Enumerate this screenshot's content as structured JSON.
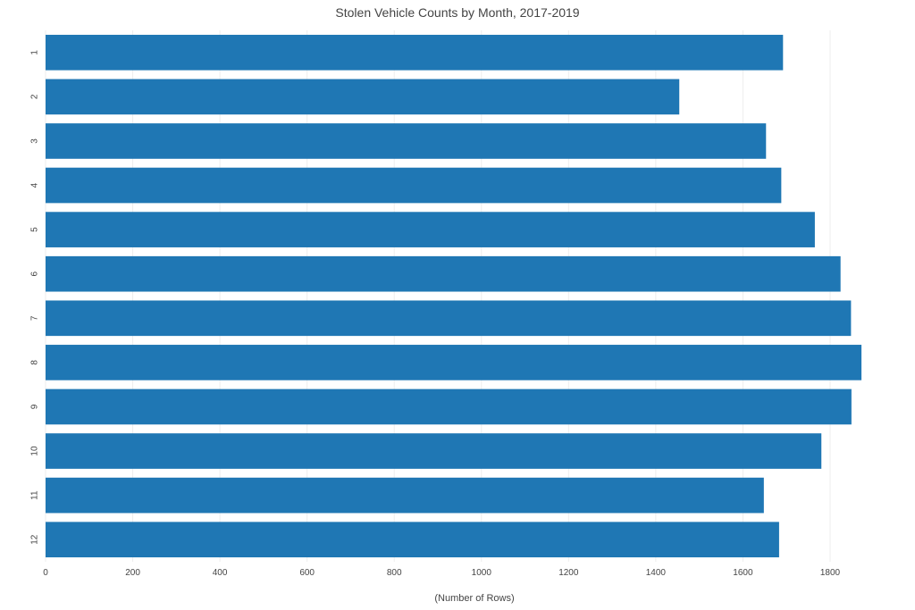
{
  "chart_data": {
    "type": "bar",
    "orientation": "horizontal",
    "title": "Stolen Vehicle Counts by Month, 2017-2019",
    "xlabel": "(Number of Rows)",
    "ylabel": "",
    "categories": [
      "1",
      "2",
      "3",
      "4",
      "5",
      "6",
      "7",
      "8",
      "9",
      "10",
      "11",
      "12"
    ],
    "values": [
      1692,
      1454,
      1653,
      1688,
      1765,
      1824,
      1848,
      1872,
      1849,
      1780,
      1648,
      1683
    ],
    "xlim": [
      0,
      1880
    ],
    "x_ticks": [
      "0",
      "200",
      "400",
      "600",
      "800",
      "1000",
      "1200",
      "1400",
      "1600",
      "1800"
    ],
    "grid": true,
    "bar_color": "#1f77b4"
  }
}
